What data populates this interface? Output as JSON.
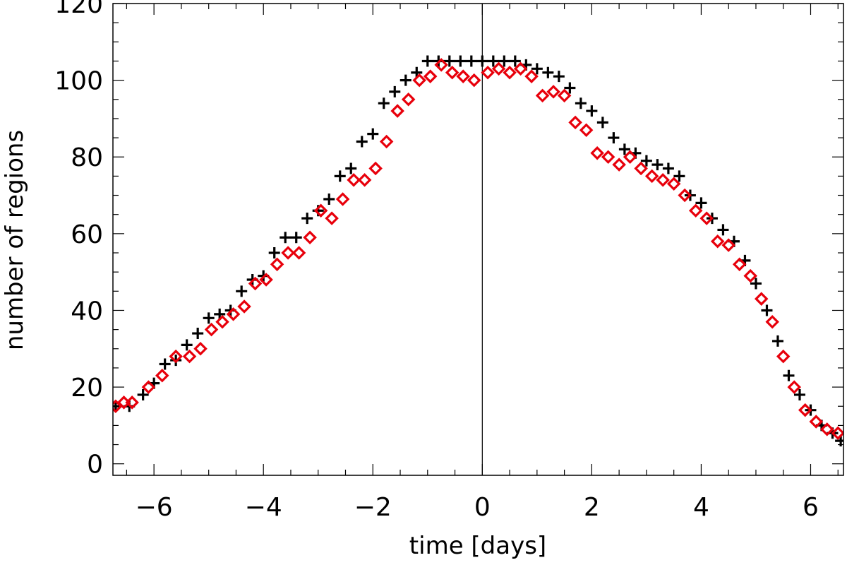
{
  "chart_data": {
    "type": "scatter",
    "title": "",
    "xlabel": "time [days]",
    "ylabel": "number of regions",
    "xlim": [
      -6.75,
      6.6
    ],
    "ylim": [
      -3,
      120
    ],
    "xticks": [
      -6,
      -4,
      -2,
      0,
      2,
      4,
      6
    ],
    "xtick_labels": [
      "−6",
      "−4",
      "−2",
      "0",
      "2",
      "4",
      "6"
    ],
    "yticks": [
      0,
      20,
      40,
      60,
      80,
      100,
      120
    ],
    "ytick_labels": [
      "0",
      "20",
      "40",
      "60",
      "80",
      "100",
      "120"
    ],
    "x_minor_step": 0.5,
    "y_minor_step": 5,
    "reference_line_x": 0,
    "grid": false,
    "legend": "none",
    "series": [
      {
        "marker": "plus",
        "color": "#000000",
        "x": [
          -6.7,
          -6.45,
          -6.2,
          -6.0,
          -5.8,
          -5.6,
          -5.4,
          -5.2,
          -5.0,
          -4.8,
          -4.6,
          -4.4,
          -4.2,
          -4.0,
          -3.8,
          -3.6,
          -3.4,
          -3.2,
          -3.0,
          -2.8,
          -2.6,
          -2.4,
          -2.2,
          -2.0,
          -1.8,
          -1.6,
          -1.4,
          -1.2,
          -1.0,
          -0.8,
          -0.6,
          -0.4,
          -0.2,
          0.0,
          0.2,
          0.4,
          0.6,
          0.8,
          1.0,
          1.2,
          1.4,
          1.6,
          1.8,
          2.0,
          2.2,
          2.4,
          2.6,
          2.8,
          3.0,
          3.2,
          3.4,
          3.6,
          3.8,
          4.0,
          4.2,
          4.4,
          4.6,
          4.8,
          5.0,
          5.2,
          5.4,
          5.6,
          5.8,
          6.0,
          6.2,
          6.4,
          6.55
        ],
        "y": [
          15,
          15,
          18,
          21,
          26,
          27,
          31,
          34,
          38,
          39,
          40,
          45,
          48,
          49,
          55,
          59,
          59,
          64,
          66,
          69,
          75,
          77,
          84,
          86,
          94,
          97,
          100,
          102,
          105,
          105,
          105,
          105,
          105,
          105,
          105,
          105,
          105,
          104,
          103,
          102,
          101,
          98,
          94,
          92,
          89,
          85,
          82,
          81,
          79,
          78,
          77,
          75,
          70,
          68,
          64,
          61,
          58,
          53,
          47,
          40,
          32,
          23,
          18,
          14,
          10,
          8,
          6
        ]
      },
      {
        "marker": "diamond",
        "color": "#e8000b",
        "x": [
          -6.7,
          -6.55,
          -6.4,
          -6.1,
          -5.85,
          -5.6,
          -5.35,
          -5.15,
          -4.95,
          -4.75,
          -4.55,
          -4.35,
          -4.15,
          -3.95,
          -3.75,
          -3.55,
          -3.35,
          -3.15,
          -2.95,
          -2.75,
          -2.55,
          -2.35,
          -2.15,
          -1.95,
          -1.75,
          -1.55,
          -1.35,
          -1.15,
          -0.95,
          -0.75,
          -0.55,
          -0.35,
          -0.15,
          0.1,
          0.3,
          0.5,
          0.7,
          0.9,
          1.1,
          1.3,
          1.5,
          1.7,
          1.9,
          2.1,
          2.3,
          2.5,
          2.7,
          2.9,
          3.1,
          3.3,
          3.5,
          3.7,
          3.9,
          4.1,
          4.3,
          4.5,
          4.7,
          4.9,
          5.1,
          5.3,
          5.5,
          5.7,
          5.9,
          6.1,
          6.3,
          6.5
        ],
        "y": [
          15,
          16,
          16,
          20,
          23,
          28,
          28,
          30,
          35,
          37,
          39,
          41,
          47,
          48,
          52,
          55,
          55,
          59,
          66,
          64,
          69,
          74,
          74,
          77,
          84,
          92,
          95,
          100,
          101,
          104,
          102,
          101,
          100,
          102,
          103,
          102,
          103,
          101,
          96,
          97,
          96,
          89,
          87,
          81,
          80,
          78,
          80,
          77,
          75,
          74,
          73,
          70,
          66,
          64,
          58,
          57,
          52,
          49,
          43,
          37,
          28,
          20,
          14,
          11,
          9,
          8
        ]
      }
    ]
  }
}
